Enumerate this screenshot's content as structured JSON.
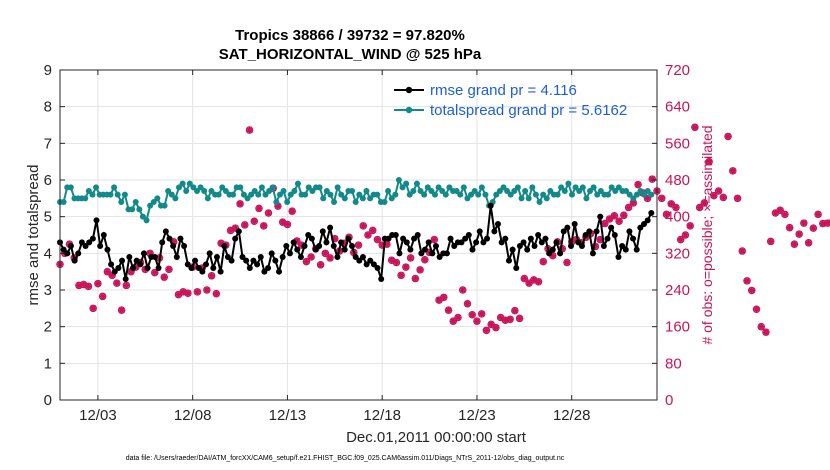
{
  "chart_data": {
    "type": "line",
    "title_line1": "Tropics 38866 / 39732 = 97.820%",
    "title_line2": "SAT_HORIZONTAL_WIND @ 525 hPa",
    "xlabel": "Dec.01,2011 00:00:00 start",
    "ylabel_left": "rmse and totalspread",
    "ylabel_right": "# of obs: o=possible; ×=assimilated",
    "footnote": "data file: /Users/raeder/DAI/ATM_forcXX/CAM6_setup/f.e21.FHIST_BGC.f09_025.CAM6assim.011/Diags_NTrS_2011-12/obs_diag_output.nc",
    "x_tick_labels": [
      "12/03",
      "12/08",
      "12/13",
      "12/18",
      "12/23",
      "12/28"
    ],
    "x_tick_values": [
      3,
      8,
      13,
      18,
      23,
      28
    ],
    "xlim": [
      1,
      32.5
    ],
    "ylim_left": [
      0,
      9
    ],
    "y_ticks_left": [
      "0",
      "1",
      "2",
      "3",
      "4",
      "5",
      "6",
      "7",
      "8",
      "9"
    ],
    "ylim_right": [
      0,
      720
    ],
    "y_ticks_right": [
      "0",
      "80",
      "160",
      "240",
      "320",
      "400",
      "480",
      "560",
      "640",
      "720"
    ],
    "colors": {
      "rmse": "#000000",
      "spread": "#138a8a",
      "obs": "#c8145a",
      "legend_text": "#1f5fd6"
    },
    "series": [
      {
        "name": "rmse grand pr = 4.116",
        "key": "rmse",
        "values": [
          4.3,
          4.1,
          4.0,
          4.2,
          3.8,
          4.0,
          4.3,
          4.2,
          4.3,
          4.4,
          4.9,
          4.2,
          4.5,
          4.1,
          3.7,
          3.5,
          3.6,
          3.8,
          3.3,
          3.9,
          3.6,
          3.8,
          3.7,
          4.0,
          3.6,
          3.9,
          3.9,
          3.6,
          4.3,
          4.6,
          4.4,
          4.2,
          3.9,
          4.4,
          4.2,
          3.7,
          3.6,
          3.8,
          3.6,
          3.5,
          3.7,
          4.0,
          3.6,
          3.9,
          3.5,
          4.2,
          3.9,
          3.8,
          4.4,
          4.6,
          3.9,
          3.8,
          3.6,
          3.8,
          3.7,
          3.9,
          3.5,
          3.6,
          4.0,
          3.8,
          3.5,
          3.9,
          4.2,
          4.0,
          4.3,
          4.1,
          3.9,
          4.2,
          4.5,
          4.4,
          4.1,
          4.2,
          4.6,
          4.3,
          4.7,
          4.2,
          3.9,
          4.3,
          4.1,
          4.4,
          4.2,
          3.9,
          3.8,
          3.9,
          3.7,
          3.8,
          3.7,
          3.6,
          3.3,
          4.4,
          4.4,
          4.5,
          4.5,
          4.0,
          4.4,
          4.3,
          4.1,
          4.4,
          4.5,
          4.0,
          4.1,
          4.3,
          4.0,
          4.2,
          3.9,
          4.0,
          4.0,
          4.4,
          4.2,
          4.3,
          4.3,
          4.4,
          4.5,
          4.1,
          4.3,
          4.6,
          4.3,
          4.4,
          5.3,
          4.6,
          4.8,
          4.3,
          4.4,
          3.8,
          4.1,
          3.6,
          4.2,
          4.3,
          4.1,
          4.4,
          4.2,
          4.5,
          4.3,
          4.4,
          4.0,
          4.1,
          4.3,
          4.0,
          4.6,
          4.7,
          4.2,
          4.8,
          4.3,
          4.2,
          4.5,
          4.6,
          4.0,
          4.6,
          5.0,
          4.2,
          4.4,
          4.7,
          4.5,
          3.9,
          4.2,
          4.1,
          4.6,
          4.4,
          4.1,
          4.7,
          4.8,
          4.9,
          5.1
        ]
      },
      {
        "name": "totalspread grand pr = 5.6162",
        "key": "spread",
        "values": [
          5.4,
          5.4,
          5.8,
          5.8,
          5.5,
          5.5,
          5.5,
          5.5,
          5.7,
          5.6,
          5.8,
          5.6,
          5.6,
          5.6,
          5.6,
          5.8,
          5.6,
          5.4,
          5.6,
          5.2,
          5.2,
          5.4,
          5.2,
          5.0,
          4.9,
          5.3,
          5.4,
          5.5,
          5.3,
          5.3,
          5.7,
          5.6,
          5.5,
          5.8,
          5.9,
          5.7,
          5.9,
          5.8,
          5.7,
          5.8,
          5.7,
          5.5,
          5.7,
          5.6,
          5.6,
          5.8,
          5.7,
          5.6,
          5.6,
          5.8,
          5.8,
          5.6,
          5.5,
          5.6,
          5.7,
          5.6,
          5.8,
          5.6,
          5.7,
          5.8,
          5.4,
          5.6,
          5.7,
          5.4,
          5.6,
          5.7,
          5.9,
          5.6,
          5.6,
          5.8,
          5.7,
          5.8,
          5.8,
          5.5,
          5.7,
          5.6,
          5.4,
          5.8,
          5.6,
          5.5,
          5.7,
          5.7,
          5.4,
          5.6,
          5.5,
          5.7,
          5.5,
          5.6,
          5.6,
          5.4,
          5.4,
          5.7,
          5.5,
          5.6,
          6.0,
          5.8,
          5.9,
          5.6,
          5.7,
          5.9,
          5.7,
          5.6,
          5.8,
          5.7,
          5.6,
          5.8,
          5.7,
          5.6,
          5.8,
          5.7,
          5.7,
          5.6,
          5.8,
          5.5,
          5.6,
          5.7,
          5.6,
          5.8,
          5.6,
          5.3,
          5.4,
          5.6,
          5.7,
          5.8,
          5.7,
          5.6,
          5.7,
          5.8,
          5.5,
          5.7,
          5.5,
          5.8,
          5.6,
          5.4,
          5.6,
          5.5,
          5.7,
          5.6,
          5.6,
          5.8,
          5.7,
          5.9,
          5.6,
          5.8,
          5.7,
          5.8,
          5.5,
          5.7,
          5.8,
          5.6,
          5.7,
          5.6,
          5.6,
          5.8,
          5.7,
          5.8,
          5.7,
          5.7,
          5.6,
          5.5,
          5.6,
          5.7,
          5.6,
          5.7,
          5.6
        ]
      },
      {
        "name": "obs assimilated",
        "key": "obs",
        "step": 0.25,
        "start": 1,
        "values": [
          296,
          320,
          340,
          310,
          250,
          252,
          248,
          200,
          254,
          226,
          280,
          272,
          255,
          196,
          250,
          280,
          290,
          300,
          285,
          320,
          278,
          310,
          268,
          285,
          345,
          230,
          236,
          233,
          290,
          236,
          288,
          240,
          271,
          232,
          342,
          338,
          370,
          375,
          428,
          382,
          589,
          390,
          418,
          380,
          408,
          462,
          423,
          388,
          383,
          412,
          347,
          338,
          302,
          312,
          330,
          295,
          320,
          310,
          352,
          325,
          342,
          355,
          322,
          338,
          380,
          360,
          370,
          350,
          338,
          340,
          305,
          300,
          272,
          290,
          310,
          265,
          284,
          306,
          322,
          350,
          218,
          224,
          196,
          172,
          180,
          240,
          210,
          186,
          172,
          188,
          152,
          165,
          158,
          180,
          174,
          176,
          195,
          178,
          265,
          255,
          262,
          258,
          302,
          330,
          315,
          345,
          330,
          300,
          345,
          350,
          343,
          355,
          363,
          335,
          350,
          385,
          395,
          402,
          390,
          403,
          420,
          430,
          470,
          452,
          440,
          482,
          456,
          440,
          405,
          428,
          420,
          350,
          360,
          380,
          595,
          420,
          430,
          520,
          446,
          456,
          442,
          575,
          500,
          440,
          325,
          260,
          239,
          198,
          160,
          148,
          346,
          408,
          414,
          405,
          376,
          340,
          362,
          386,
          343,
          375,
          405,
          385,
          386,
          388,
          0
        ]
      }
    ],
    "legend_location": "top-right"
  }
}
